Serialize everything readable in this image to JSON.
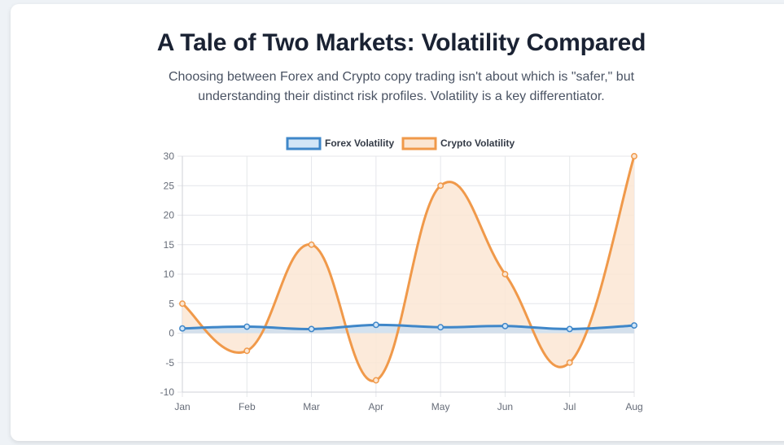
{
  "header": {
    "title": "A Tale of Two Markets: Volatility Compared",
    "subtitle_lines": [
      "Choosing between Forex and Crypto copy trading isn't about which is \"safer,\" but",
      "understanding their distinct risk profiles. Volatility is a key differentiator."
    ]
  },
  "chart_data": {
    "type": "line",
    "title": "",
    "xlabel": "",
    "ylabel": "",
    "categories": [
      "Jan",
      "Feb",
      "Mar",
      "Apr",
      "May",
      "Jun",
      "Jul",
      "Aug"
    ],
    "ylim": [
      -10,
      30
    ],
    "yticks": [
      30,
      25,
      20,
      15,
      10,
      5,
      0,
      -5,
      -10
    ],
    "grid": true,
    "legend_position": "top-center",
    "smooth": true,
    "filled": true,
    "series": [
      {
        "name": "Forex Volatility",
        "values": [
          0.8,
          1.1,
          0.7,
          1.4,
          1.0,
          1.2,
          0.7,
          1.3
        ],
        "color": "#3f87c9",
        "fill_color": "#d3e6f7"
      },
      {
        "name": "Crypto Volatility",
        "values": [
          5,
          -3,
          15,
          -8,
          25,
          10,
          -5,
          30
        ],
        "color": "#f0994a",
        "fill_color": "#fbe6d3"
      }
    ]
  }
}
